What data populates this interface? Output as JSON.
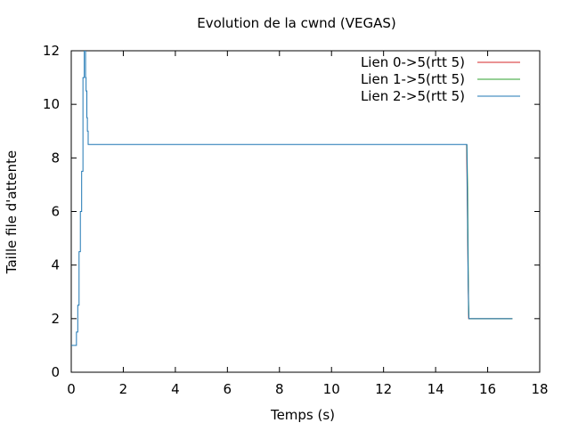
{
  "chart_data": {
    "type": "line",
    "title": "Evolution de la cwnd (VEGAS)",
    "xlabel": "Temps (s)",
    "ylabel": "Taille file d'attente",
    "xlim": [
      0,
      18
    ],
    "ylim": [
      0,
      12
    ],
    "xticks": [
      0,
      2,
      4,
      6,
      8,
      10,
      12,
      14,
      16,
      18
    ],
    "yticks": [
      0,
      2,
      4,
      6,
      8,
      10,
      12
    ],
    "grid": false,
    "legend_position": "top-right",
    "series": [
      {
        "name": "Lien 0->5(rtt 5)",
        "color": "#d62728",
        "points": [
          [
            15.19,
            8.5
          ],
          [
            15.22,
            6.2
          ],
          [
            15.25,
            3.4
          ],
          [
            15.27,
            2.0
          ],
          [
            16.95,
            2.0
          ]
        ]
      },
      {
        "name": "Lien 1->5(rtt 5)",
        "color": "#2ca02c",
        "points": [
          [
            15.2,
            8.5
          ],
          [
            15.23,
            6.9
          ],
          [
            15.26,
            3.0
          ],
          [
            15.28,
            2.0
          ],
          [
            16.95,
            2.0
          ]
        ]
      },
      {
        "name": "Lien 2->5(rtt 5)",
        "color": "#1f77b4",
        "points": [
          [
            0.0,
            1.0
          ],
          [
            0.2,
            1.0
          ],
          [
            0.2,
            1.5
          ],
          [
            0.25,
            1.5
          ],
          [
            0.25,
            2.5
          ],
          [
            0.3,
            2.5
          ],
          [
            0.3,
            4.5
          ],
          [
            0.35,
            4.5
          ],
          [
            0.35,
            6.0
          ],
          [
            0.4,
            6.0
          ],
          [
            0.4,
            7.5
          ],
          [
            0.45,
            7.5
          ],
          [
            0.45,
            11.0
          ],
          [
            0.5,
            11.0
          ],
          [
            0.5,
            12.0
          ],
          [
            0.5,
            12.0
          ],
          [
            0.55,
            12.0
          ],
          [
            0.55,
            11.0
          ],
          [
            0.57,
            11.0
          ],
          [
            0.57,
            10.5
          ],
          [
            0.6,
            10.5
          ],
          [
            0.6,
            9.5
          ],
          [
            0.62,
            9.5
          ],
          [
            0.62,
            9.0
          ],
          [
            0.65,
            9.0
          ],
          [
            0.65,
            8.5
          ],
          [
            15.2,
            8.5
          ],
          [
            15.21,
            7.5
          ],
          [
            15.23,
            5.5
          ],
          [
            15.25,
            3.5
          ],
          [
            15.27,
            2.2
          ],
          [
            15.28,
            2.0
          ],
          [
            16.95,
            2.0
          ]
        ]
      }
    ]
  }
}
